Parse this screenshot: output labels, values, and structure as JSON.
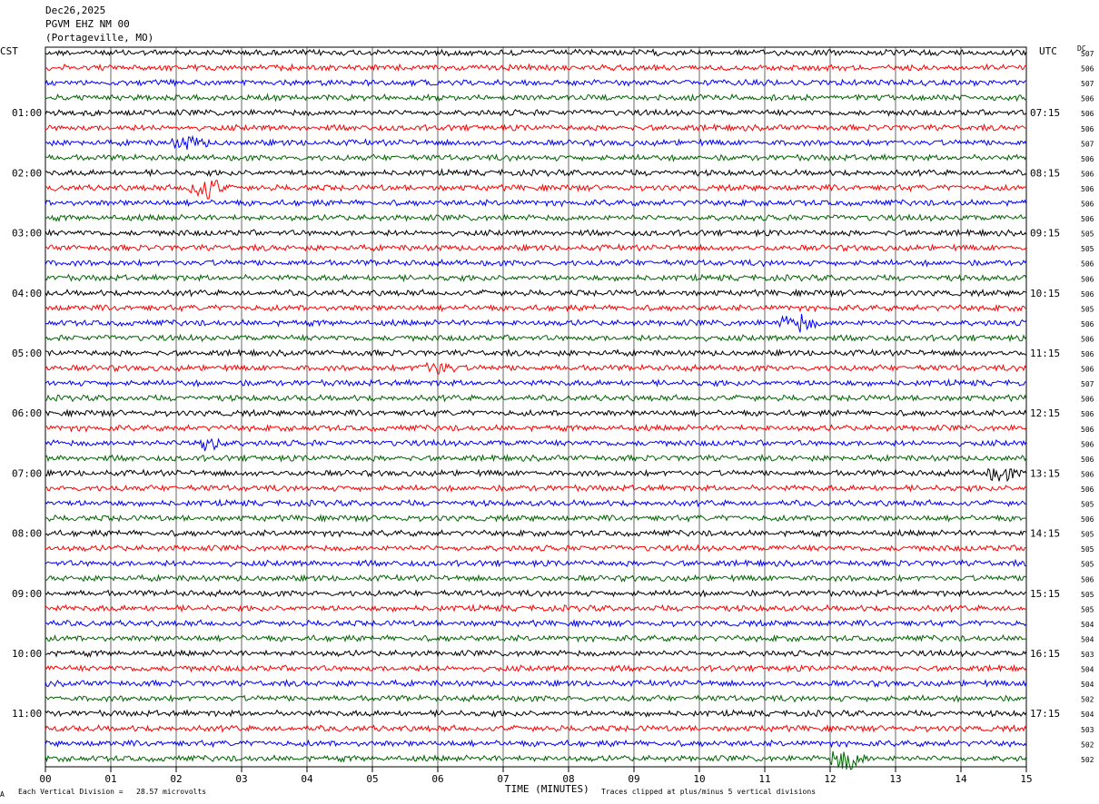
{
  "header": {
    "date": "Dec26,2025",
    "station": "PGVM EHZ NM 00",
    "location": "(Portageville, MO)"
  },
  "axes": {
    "left_label": "CST",
    "right_label": "UTC",
    "dc_label": "DC",
    "x_title": "TIME (MINUTES)"
  },
  "footer": {
    "corner_mark": "A",
    "vertical_division": "Each Vertical Division =   28.57 microvolts",
    "clip_note": "Traces clipped at plus/minus 5 vertical divisions"
  },
  "chart_data": {
    "type": "line",
    "x_ticks": [
      "00",
      "01",
      "02",
      "03",
      "04",
      "05",
      "06",
      "07",
      "08",
      "09",
      "10",
      "11",
      "12",
      "13",
      "14",
      "15"
    ],
    "xlim": [
      0,
      15
    ],
    "grid": "vertical lines each minute",
    "trace_colors": [
      "#000000",
      "#ff0000",
      "#0000ff",
      "#006400"
    ],
    "left_hour_labels": [
      "01:00",
      "02:00",
      "03:00",
      "04:00",
      "05:00",
      "06:00",
      "07:00",
      "08:00",
      "09:00",
      "10:00",
      "11:00"
    ],
    "right_hour_labels": [
      "07:15",
      "08:15",
      "09:15",
      "10:15",
      "11:15",
      "12:15",
      "13:15",
      "14:15",
      "15:15",
      "16:15",
      "17:15"
    ],
    "dc_offsets": [
      507,
      506,
      507,
      506,
      506,
      506,
      507,
      506,
      506,
      506,
      506,
      506,
      505,
      505,
      506,
      506,
      506,
      505,
      506,
      506,
      506,
      506,
      507,
      506,
      506,
      506,
      506,
      506,
      506,
      506,
      505,
      506,
      505,
      505,
      505,
      506,
      505,
      505,
      504,
      504,
      503,
      504,
      504,
      502,
      504,
      503,
      502,
      502
    ],
    "events": [
      {
        "trace": 9,
        "minute": 2.45,
        "amp": 1.6
      },
      {
        "trace": 18,
        "minute": 11.5,
        "amp": 1.1
      },
      {
        "trace": 26,
        "minute": 2.5,
        "amp": 0.9
      },
      {
        "trace": 28,
        "minute": 14.6,
        "amp": 0.8
      },
      {
        "trace": 47,
        "minute": 12.25,
        "amp": 1.6
      },
      {
        "trace": 6,
        "minute": 2.2,
        "amp": 0.7
      },
      {
        "trace": 21,
        "minute": 6.0,
        "amp": 0.8
      }
    ]
  }
}
